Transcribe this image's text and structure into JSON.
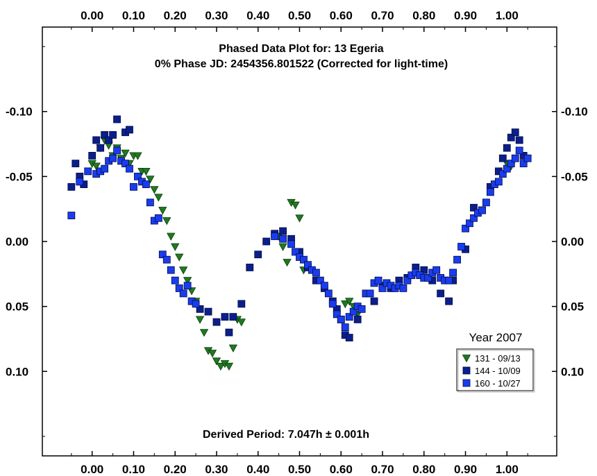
{
  "chart_data": {
    "type": "scatter",
    "title": "Phased Data Plot for: 13 Egeria",
    "subtitle": "0% Phase JD:  2454356.801522   (Corrected for light-time)",
    "footer": "Derived Period: 7.047h ± 0.001h",
    "x_ticks": [
      "0.00",
      "0.10",
      "0.20",
      "0.30",
      "0.40",
      "0.50",
      "0.60",
      "0.70",
      "0.80",
      "0.90",
      "1.00"
    ],
    "x_tick_values": [
      0,
      0.1,
      0.2,
      0.3,
      0.4,
      0.5,
      0.6,
      0.7,
      0.8,
      0.9,
      1.0
    ],
    "y_ticks": [
      "-0.10",
      "-0.05",
      "0.00",
      "0.05",
      "0.10"
    ],
    "y_tick_values": [
      -0.1,
      -0.05,
      0,
      0.05,
      0.1
    ],
    "xlim": [
      -0.12,
      1.12
    ],
    "ylim": [
      -0.165,
      0.165
    ],
    "y_inverted": true,
    "legend": {
      "title": "Year 2007",
      "placement": "right",
      "entries": [
        {
          "label": "131 - 09/13",
          "marker": "triangle-down",
          "color": "#1f7a1f"
        },
        {
          "label": "144 - 10/09",
          "marker": "square",
          "color": "#0b1f8c"
        },
        {
          "label": "160 - 10/27",
          "marker": "square",
          "color": "#1a3cf0"
        }
      ]
    },
    "series": [
      {
        "name": "131 - 09/13",
        "marker": "triangle-down",
        "color": "#1f7a1f",
        "x": [
          0.0,
          0.01,
          0.02,
          0.03,
          0.04,
          0.05,
          0.06,
          0.07,
          0.08,
          0.09,
          0.1,
          0.11,
          0.12,
          0.13,
          0.14,
          0.15,
          0.16,
          0.17,
          0.18,
          0.19,
          0.2,
          0.21,
          0.22,
          0.23,
          0.24,
          0.25,
          0.26,
          0.27,
          0.28,
          0.29,
          0.3,
          0.31,
          0.32,
          0.33,
          0.34,
          0.35,
          0.36,
          0.45,
          0.46,
          0.47,
          0.48,
          0.49,
          0.5,
          0.51,
          0.61,
          0.62,
          0.63,
          0.64,
          1.0,
          1.01
        ],
        "y": [
          -0.06,
          -0.058,
          -0.072,
          -0.078,
          -0.074,
          -0.066,
          -0.072,
          -0.064,
          -0.068,
          -0.06,
          -0.066,
          -0.066,
          -0.054,
          -0.054,
          -0.048,
          -0.04,
          -0.034,
          -0.024,
          -0.016,
          -0.004,
          0.004,
          0.012,
          0.022,
          0.03,
          0.038,
          0.046,
          0.06,
          0.07,
          0.084,
          0.086,
          0.092,
          0.096,
          0.094,
          0.096,
          0.082,
          0.06,
          0.062,
          -0.004,
          0.004,
          0.016,
          -0.03,
          -0.028,
          -0.018,
          0.022,
          0.048,
          0.046,
          0.05,
          0.056,
          -0.06,
          -0.058
        ]
      },
      {
        "name": "144 - 10/09",
        "marker": "square",
        "color": "#0b1f8c",
        "x": [
          -0.05,
          -0.04,
          -0.03,
          -0.02,
          0.0,
          0.01,
          0.02,
          0.03,
          0.04,
          0.05,
          0.06,
          0.08,
          0.09,
          0.26,
          0.28,
          0.3,
          0.32,
          0.33,
          0.34,
          0.36,
          0.38,
          0.4,
          0.42,
          0.44,
          0.46,
          0.48,
          0.5,
          0.52,
          0.54,
          0.56,
          0.58,
          0.59,
          0.6,
          0.61,
          0.62,
          0.64,
          0.66,
          0.68,
          0.7,
          0.72,
          0.74,
          0.76,
          0.78,
          0.8,
          0.82,
          0.84,
          0.86,
          0.87,
          0.9,
          0.92,
          0.94,
          0.96,
          0.98,
          0.99,
          1.0,
          1.01,
          1.02,
          1.03,
          1.04
        ],
        "y": [
          -0.042,
          -0.06,
          -0.05,
          -0.044,
          -0.066,
          -0.078,
          -0.072,
          -0.082,
          -0.078,
          -0.082,
          -0.094,
          -0.084,
          -0.086,
          0.052,
          0.054,
          0.062,
          0.058,
          0.07,
          0.058,
          0.048,
          0.02,
          0.01,
          0.0,
          -0.006,
          -0.008,
          -0.002,
          0.008,
          0.02,
          0.03,
          0.036,
          0.046,
          0.052,
          0.06,
          0.072,
          0.074,
          0.06,
          0.04,
          0.046,
          0.034,
          0.036,
          0.03,
          0.028,
          0.02,
          0.022,
          0.03,
          0.04,
          0.046,
          0.03,
          0.006,
          -0.026,
          -0.024,
          -0.042,
          -0.054,
          -0.064,
          -0.072,
          -0.08,
          -0.084,
          -0.078,
          -0.066
        ]
      },
      {
        "name": "160 - 10/27",
        "marker": "square",
        "color": "#1a3cf0",
        "x": [
          -0.05,
          -0.03,
          -0.01,
          0.01,
          0.02,
          0.03,
          0.04,
          0.05,
          0.06,
          0.07,
          0.08,
          0.09,
          0.1,
          0.11,
          0.12,
          0.13,
          0.14,
          0.15,
          0.16,
          0.17,
          0.18,
          0.19,
          0.2,
          0.21,
          0.22,
          0.23,
          0.24,
          0.25,
          0.44,
          0.46,
          0.48,
          0.49,
          0.5,
          0.51,
          0.52,
          0.53,
          0.54,
          0.55,
          0.56,
          0.57,
          0.58,
          0.59,
          0.6,
          0.61,
          0.62,
          0.63,
          0.64,
          0.65,
          0.66,
          0.67,
          0.68,
          0.69,
          0.7,
          0.71,
          0.72,
          0.73,
          0.74,
          0.75,
          0.76,
          0.77,
          0.78,
          0.79,
          0.8,
          0.81,
          0.82,
          0.83,
          0.84,
          0.85,
          0.86,
          0.87,
          0.88,
          0.89,
          0.9,
          0.91,
          0.92,
          0.93,
          0.94,
          0.95,
          0.96,
          0.97,
          0.98,
          0.99,
          1.0,
          1.01,
          1.02,
          1.03,
          1.04,
          1.05
        ],
        "y": [
          -0.02,
          -0.046,
          -0.054,
          -0.052,
          -0.054,
          -0.056,
          -0.062,
          -0.064,
          -0.07,
          -0.062,
          -0.06,
          -0.056,
          -0.042,
          -0.05,
          -0.046,
          -0.044,
          -0.03,
          -0.016,
          -0.018,
          0.01,
          0.014,
          0.022,
          0.03,
          0.036,
          0.04,
          0.034,
          0.046,
          0.048,
          -0.004,
          -0.002,
          0.002,
          0.008,
          0.012,
          0.014,
          0.018,
          0.022,
          0.024,
          0.03,
          0.034,
          0.04,
          0.048,
          0.056,
          0.06,
          0.066,
          0.058,
          0.054,
          0.05,
          0.052,
          0.04,
          0.04,
          0.032,
          0.03,
          0.036,
          0.032,
          0.034,
          0.036,
          0.034,
          0.036,
          0.03,
          0.026,
          0.024,
          0.026,
          0.028,
          0.028,
          0.024,
          0.022,
          0.028,
          0.03,
          0.03,
          0.024,
          0.014,
          0.004,
          -0.01,
          -0.014,
          -0.018,
          -0.022,
          -0.024,
          -0.03,
          -0.038,
          -0.044,
          -0.046,
          -0.052,
          -0.056,
          -0.06,
          -0.064,
          -0.07,
          -0.06,
          -0.064
        ]
      }
    ]
  }
}
